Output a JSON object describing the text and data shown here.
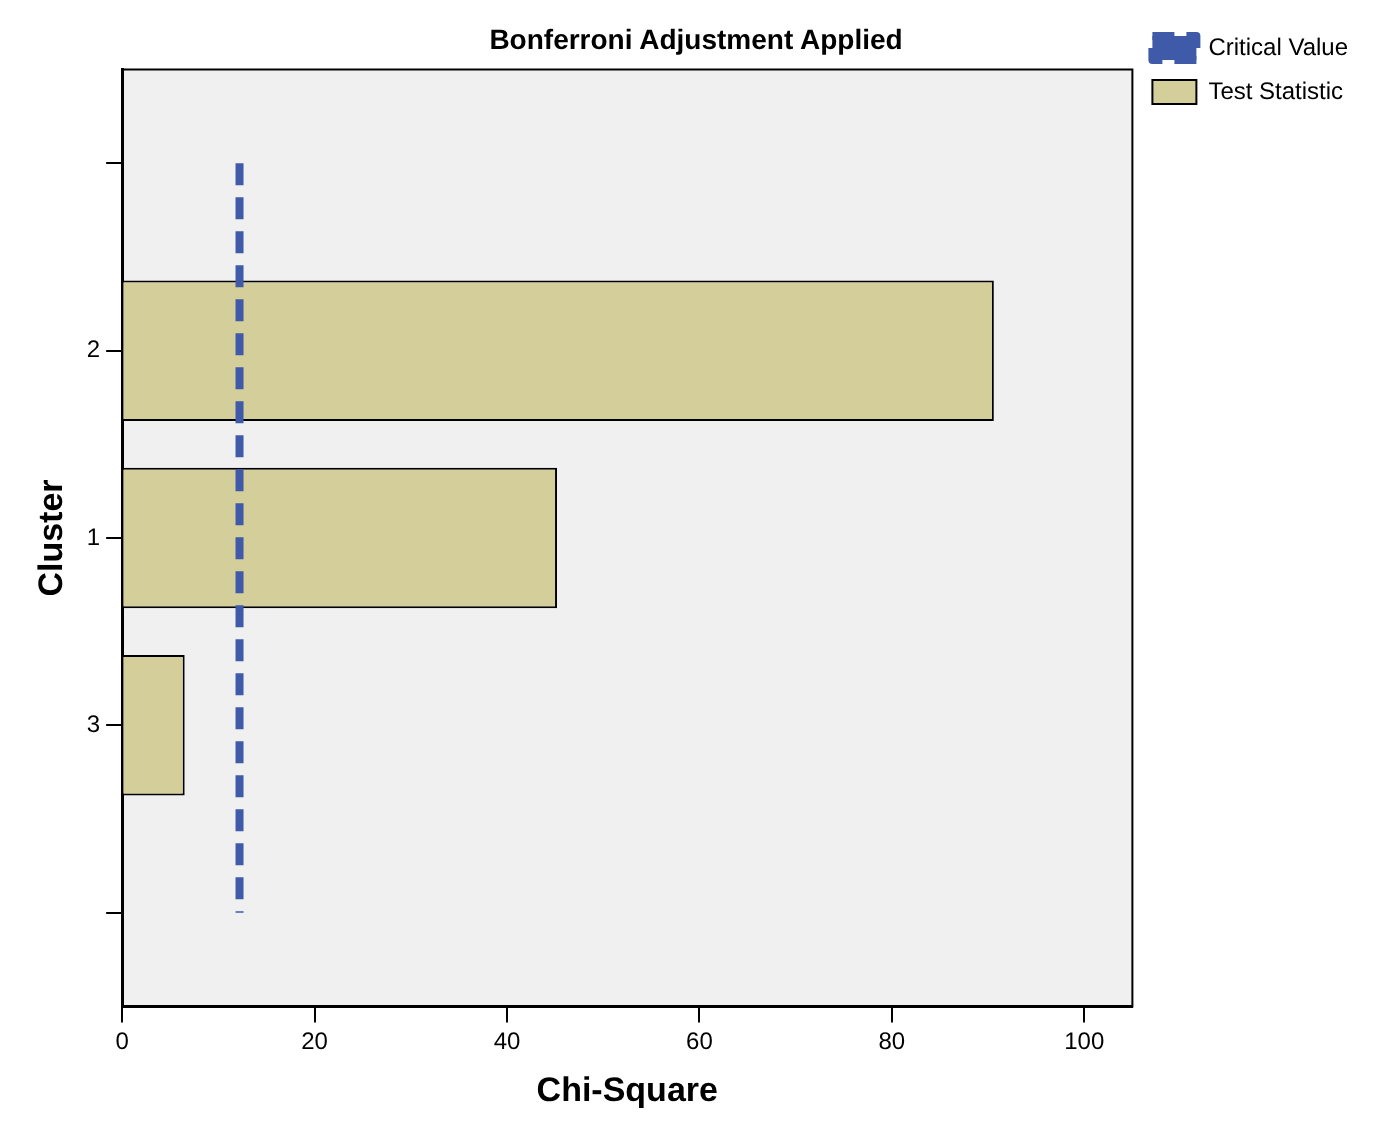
{
  "chart_data": {
    "type": "bar",
    "orientation": "horizontal",
    "title": "Bonferroni Adjustment Applied",
    "xlabel": "Chi-Square",
    "ylabel": "Cluster",
    "categories": [
      null,
      "2",
      "1",
      "3",
      null
    ],
    "series": [
      {
        "name": "Critical Value",
        "type": "line",
        "color": "#3f5aa8",
        "line_style": "dashed",
        "marker": "none",
        "values": [
          12.2,
          12.2,
          12.2,
          12.2,
          12.2
        ]
      },
      {
        "name": "Test Statistic",
        "color": "#d3ce9a",
        "values": [
          null,
          90.6,
          45.2,
          6.5,
          null
        ]
      }
    ],
    "xlim": [
      0,
      105
    ],
    "xticks": [
      0,
      20,
      40,
      60,
      80,
      100
    ],
    "grid": false,
    "legend": "top right"
  }
}
